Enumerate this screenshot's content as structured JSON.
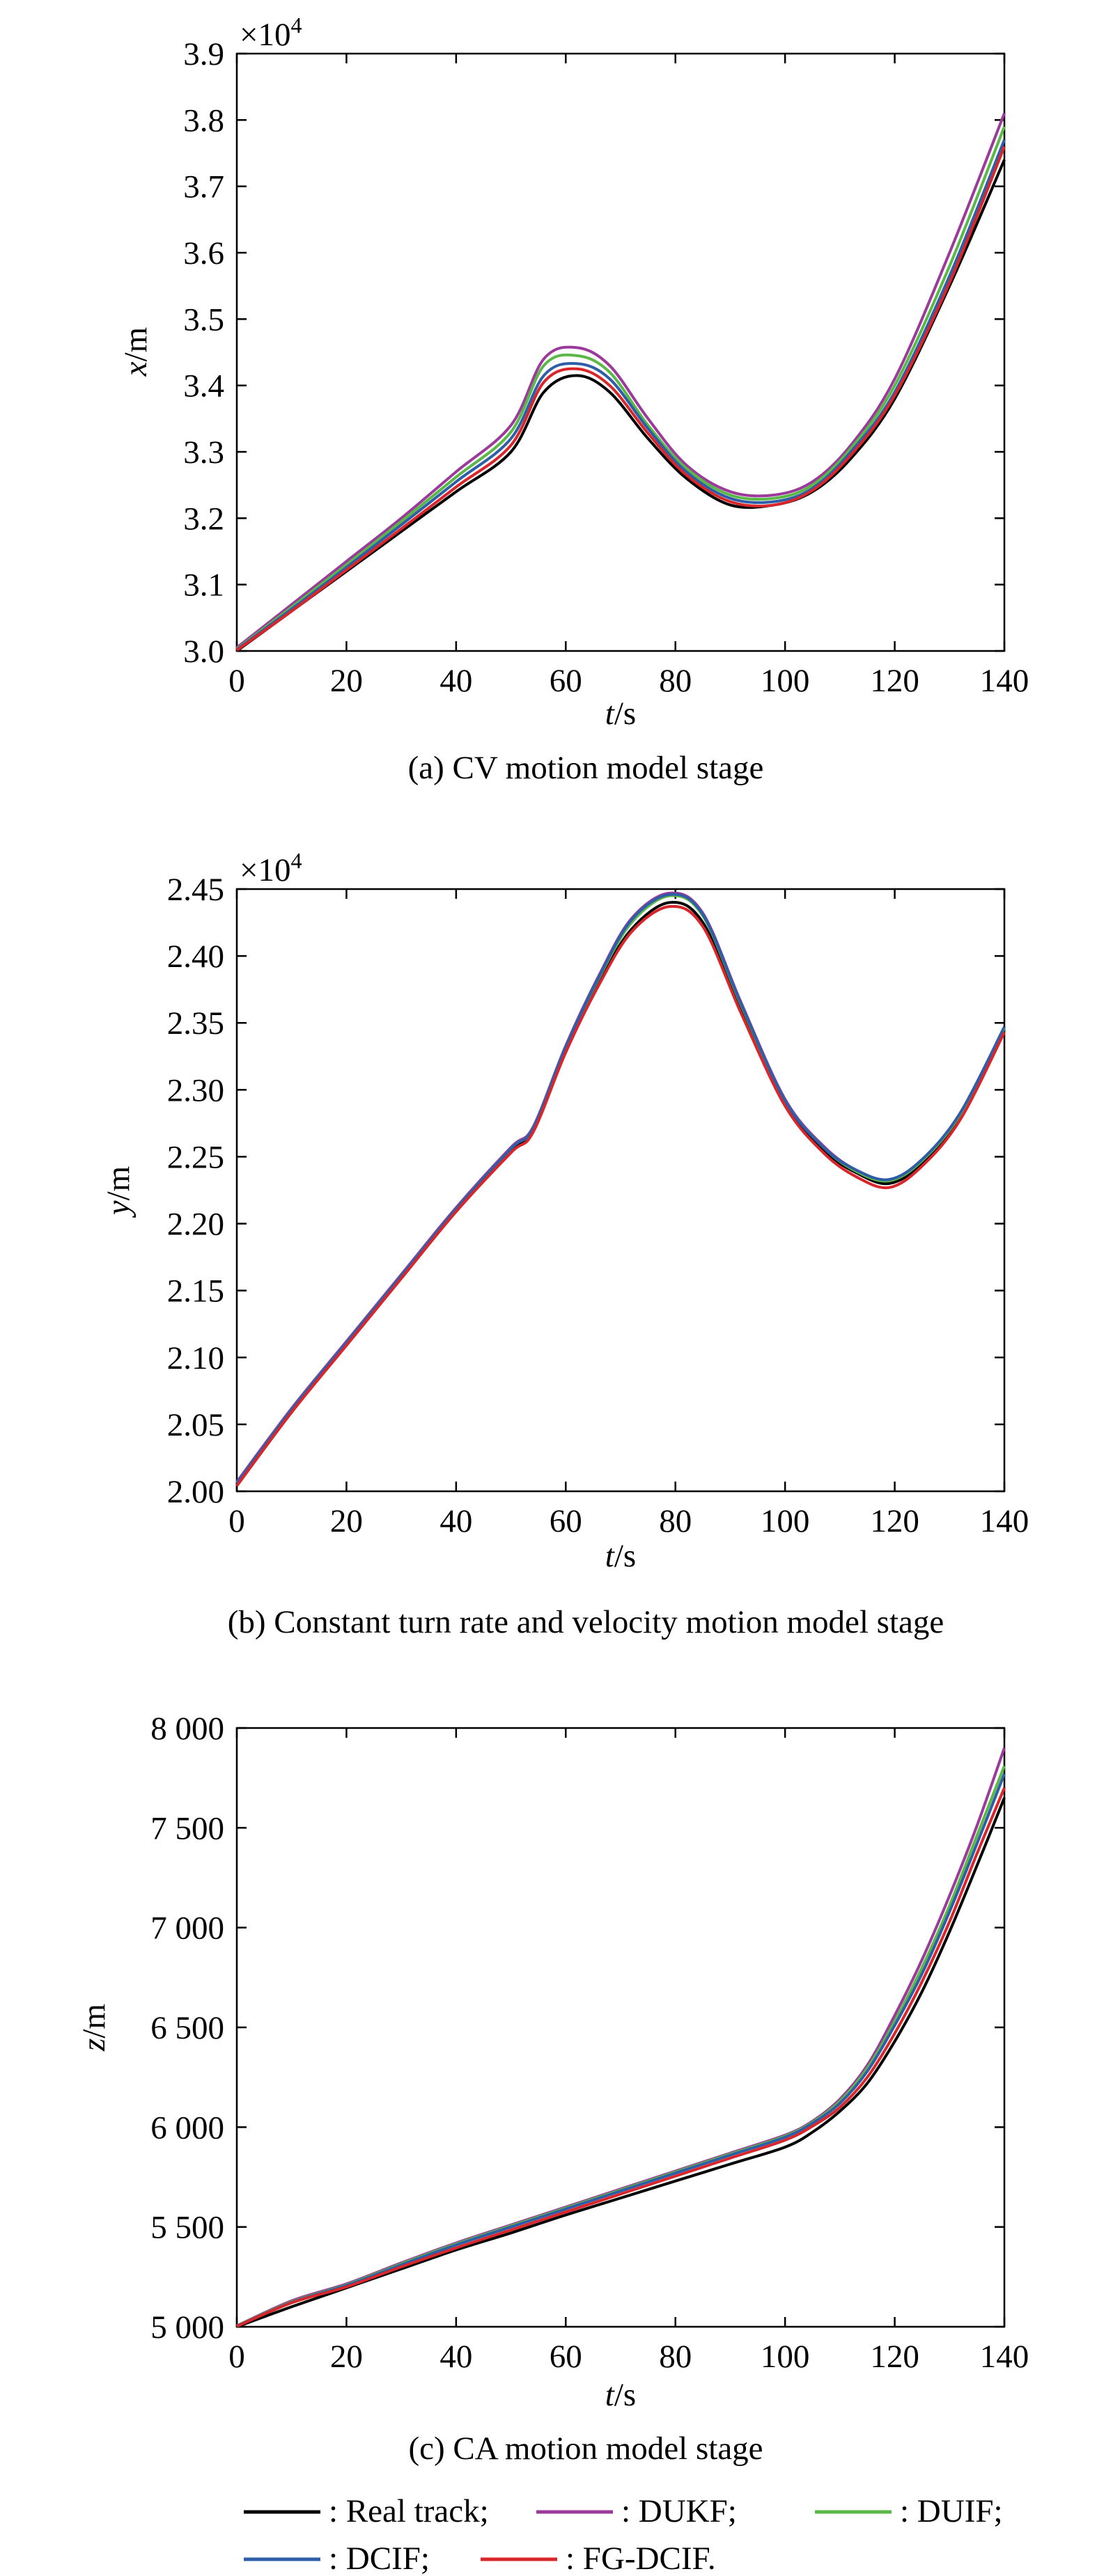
{
  "legend": {
    "entries": [
      {
        "label": ": Real track;",
        "color": "#000000"
      },
      {
        "label": ": DUKF;",
        "color": "#9b3a9b"
      },
      {
        "label": ": DUIF;",
        "color": "#5ab946"
      },
      {
        "label": ": DCIF;",
        "color": "#2f5ea8"
      },
      {
        "label": ": FG-DCIF.",
        "color": "#d9262a"
      }
    ]
  },
  "chart_data": [
    {
      "type": "line",
      "caption": "(a) CV motion model stage",
      "xlabel": "t/s",
      "ylabel": "x/m",
      "exponent": "×10",
      "exponent_power": "4",
      "xlim": [
        0,
        140
      ],
      "ylim": [
        3.0,
        3.9
      ],
      "xticks": [
        0,
        20,
        40,
        60,
        80,
        100,
        120,
        140
      ],
      "xtick_labels": [
        "0",
        "20",
        "40",
        "60",
        "80",
        "100",
        "120",
        "140"
      ],
      "yticks": [
        3.0,
        3.1,
        3.2,
        3.3,
        3.4,
        3.5,
        3.6,
        3.7,
        3.8,
        3.9
      ],
      "ytick_labels": [
        "3.0",
        "3.1",
        "3.2",
        "3.3",
        "3.4",
        "3.5",
        "3.6",
        "3.7",
        "3.8",
        "3.9"
      ],
      "series": [
        {
          "name": "Real track",
          "color": "#000000",
          "x": [
            0,
            10,
            20,
            30,
            40,
            50,
            56,
            62,
            68,
            75,
            82,
            90,
            98,
            105,
            112,
            120,
            130,
            140
          ],
          "y": [
            3.0,
            3.06,
            3.12,
            3.18,
            3.24,
            3.3,
            3.39,
            3.415,
            3.39,
            3.32,
            3.26,
            3.22,
            3.22,
            3.24,
            3.29,
            3.38,
            3.55,
            3.74
          ]
        },
        {
          "name": "DUKF",
          "color": "#9b3a9b",
          "x": [
            0,
            10,
            20,
            30,
            40,
            50,
            56,
            62,
            68,
            75,
            82,
            90,
            98,
            105,
            112,
            120,
            130,
            140
          ],
          "y": [
            3.005,
            3.07,
            3.135,
            3.2,
            3.27,
            3.34,
            3.44,
            3.457,
            3.43,
            3.35,
            3.28,
            3.24,
            3.235,
            3.255,
            3.31,
            3.41,
            3.6,
            3.81
          ]
        },
        {
          "name": "DUIF",
          "color": "#5ab946",
          "x": [
            0,
            10,
            20,
            30,
            40,
            50,
            56,
            62,
            68,
            75,
            82,
            90,
            98,
            105,
            112,
            120,
            130,
            140
          ],
          "y": [
            3.003,
            3.066,
            3.13,
            3.195,
            3.262,
            3.33,
            3.43,
            3.445,
            3.42,
            3.34,
            3.275,
            3.235,
            3.23,
            3.25,
            3.305,
            3.4,
            3.58,
            3.79
          ]
        },
        {
          "name": "DCIF",
          "color": "#2f5ea8",
          "x": [
            0,
            10,
            20,
            30,
            40,
            50,
            56,
            62,
            68,
            75,
            82,
            90,
            98,
            105,
            112,
            120,
            130,
            140
          ],
          "y": [
            3.002,
            3.063,
            3.126,
            3.19,
            3.255,
            3.32,
            3.415,
            3.433,
            3.41,
            3.335,
            3.27,
            3.23,
            3.225,
            3.245,
            3.3,
            3.39,
            3.565,
            3.77
          ]
        },
        {
          "name": "FG-DCIF",
          "color": "#d9262a",
          "x": [
            0,
            10,
            20,
            30,
            40,
            50,
            56,
            62,
            68,
            75,
            82,
            90,
            98,
            105,
            112,
            120,
            130,
            140
          ],
          "y": [
            3.001,
            3.06,
            3.122,
            3.184,
            3.247,
            3.31,
            3.405,
            3.425,
            3.4,
            3.328,
            3.265,
            3.225,
            3.22,
            3.242,
            3.295,
            3.385,
            3.555,
            3.76
          ]
        }
      ]
    },
    {
      "type": "line",
      "caption": "(b) Constant turn rate and velocity motion model stage",
      "xlabel": "t/s",
      "ylabel": "y/m",
      "exponent": "×10",
      "exponent_power": "4",
      "xlim": [
        0,
        140
      ],
      "ylim": [
        2.0,
        2.45
      ],
      "xticks": [
        0,
        20,
        40,
        60,
        80,
        100,
        120,
        140
      ],
      "xtick_labels": [
        "0",
        "20",
        "40",
        "60",
        "80",
        "100",
        "120",
        "140"
      ],
      "yticks": [
        2.0,
        2.05,
        2.1,
        2.15,
        2.2,
        2.25,
        2.3,
        2.35,
        2.4,
        2.45
      ],
      "ytick_labels": [
        "2.00",
        "2.05",
        "2.10",
        "2.15",
        "2.20",
        "2.25",
        "2.30",
        "2.35",
        "2.40",
        "2.45"
      ],
      "series": [
        {
          "name": "Real track",
          "color": "#000000",
          "x": [
            0,
            10,
            20,
            30,
            40,
            50,
            54,
            60,
            66,
            72,
            79,
            85,
            92,
            100,
            107,
            113,
            119,
            125,
            132,
            140
          ],
          "y": [
            2.005,
            2.06,
            2.11,
            2.16,
            2.21,
            2.255,
            2.27,
            2.33,
            2.38,
            2.42,
            2.44,
            2.425,
            2.36,
            2.29,
            2.255,
            2.238,
            2.23,
            2.245,
            2.28,
            2.345
          ]
        },
        {
          "name": "DUKF",
          "color": "#9b3a9b",
          "x": [
            0,
            10,
            20,
            30,
            40,
            50,
            54,
            60,
            66,
            72,
            79,
            85,
            92,
            100,
            107,
            113,
            119,
            125,
            132,
            140
          ],
          "y": [
            2.007,
            2.062,
            2.112,
            2.162,
            2.212,
            2.257,
            2.272,
            2.333,
            2.385,
            2.428,
            2.447,
            2.432,
            2.365,
            2.293,
            2.258,
            2.24,
            2.233,
            2.248,
            2.283,
            2.347
          ]
        },
        {
          "name": "DUIF",
          "color": "#5ab946",
          "x": [
            0,
            10,
            20,
            30,
            40,
            50,
            54,
            60,
            66,
            72,
            79,
            85,
            92,
            100,
            107,
            113,
            119,
            125,
            132,
            140
          ],
          "y": [
            2.006,
            2.061,
            2.111,
            2.161,
            2.211,
            2.256,
            2.271,
            2.332,
            2.383,
            2.425,
            2.445,
            2.43,
            2.363,
            2.292,
            2.257,
            2.239,
            2.232,
            2.247,
            2.282,
            2.346
          ]
        },
        {
          "name": "DCIF",
          "color": "#2f5ea8",
          "x": [
            0,
            10,
            20,
            30,
            40,
            50,
            54,
            60,
            66,
            72,
            79,
            85,
            92,
            100,
            107,
            113,
            119,
            125,
            132,
            140
          ],
          "y": [
            2.006,
            2.061,
            2.111,
            2.161,
            2.211,
            2.256,
            2.271,
            2.332,
            2.384,
            2.427,
            2.446,
            2.431,
            2.364,
            2.292,
            2.257,
            2.24,
            2.233,
            2.248,
            2.283,
            2.347
          ]
        },
        {
          "name": "FG-DCIF",
          "color": "#d9262a",
          "x": [
            0,
            10,
            20,
            30,
            40,
            50,
            54,
            60,
            66,
            72,
            79,
            85,
            92,
            100,
            107,
            113,
            119,
            125,
            132,
            140
          ],
          "y": [
            2.004,
            2.059,
            2.109,
            2.159,
            2.209,
            2.253,
            2.268,
            2.328,
            2.378,
            2.418,
            2.437,
            2.422,
            2.357,
            2.288,
            2.253,
            2.235,
            2.227,
            2.243,
            2.278,
            2.343
          ]
        }
      ]
    },
    {
      "type": "line",
      "caption": "(c) CA motion model stage",
      "xlabel": "t/s",
      "ylabel": "z/m",
      "xlim": [
        0,
        140
      ],
      "ylim": [
        5000,
        8000
      ],
      "xticks": [
        0,
        20,
        40,
        60,
        80,
        100,
        120,
        140
      ],
      "xtick_labels": [
        "0",
        "20",
        "40",
        "60",
        "80",
        "100",
        "120",
        "140"
      ],
      "yticks": [
        5000,
        5500,
        6000,
        6500,
        7000,
        7500,
        8000
      ],
      "ytick_labels": [
        "5 000",
        "5 500",
        "6 000",
        "6 500",
        "7 000",
        "7 500",
        "8 000"
      ],
      "series": [
        {
          "name": "Real track",
          "color": "#000000",
          "x": [
            0,
            10,
            20,
            30,
            40,
            50,
            60,
            70,
            80,
            90,
            100,
            105,
            110,
            115,
            120,
            125,
            130,
            135,
            140
          ],
          "y": [
            5000,
            5100,
            5195,
            5290,
            5385,
            5470,
            5560,
            5645,
            5730,
            5815,
            5900,
            5975,
            6080,
            6220,
            6430,
            6680,
            6980,
            7310,
            7650
          ]
        },
        {
          "name": "DUKF",
          "color": "#9b3a9b",
          "x": [
            0,
            10,
            20,
            30,
            40,
            50,
            60,
            70,
            80,
            90,
            100,
            105,
            110,
            115,
            120,
            125,
            130,
            135,
            140
          ],
          "y": [
            5005,
            5130,
            5215,
            5320,
            5420,
            5510,
            5600,
            5690,
            5780,
            5870,
            5960,
            6030,
            6140,
            6310,
            6560,
            6840,
            7160,
            7510,
            7900
          ]
        },
        {
          "name": "DUIF",
          "color": "#5ab946",
          "x": [
            0,
            10,
            20,
            30,
            40,
            50,
            60,
            70,
            80,
            90,
            100,
            105,
            110,
            115,
            120,
            125,
            130,
            135,
            140
          ],
          "y": [
            5004,
            5125,
            5210,
            5315,
            5415,
            5505,
            5595,
            5685,
            5775,
            5865,
            5955,
            6025,
            6130,
            6295,
            6530,
            6800,
            7110,
            7460,
            7810
          ]
        },
        {
          "name": "DCIF",
          "color": "#2f5ea8",
          "x": [
            0,
            10,
            20,
            30,
            40,
            50,
            60,
            70,
            80,
            90,
            100,
            105,
            110,
            115,
            120,
            125,
            130,
            135,
            140
          ],
          "y": [
            5003,
            5122,
            5207,
            5310,
            5410,
            5500,
            5590,
            5680,
            5770,
            5860,
            5950,
            6020,
            6120,
            6280,
            6510,
            6770,
            7080,
            7420,
            7770
          ]
        },
        {
          "name": "FG-DCIF",
          "color": "#d9262a",
          "x": [
            0,
            10,
            20,
            30,
            40,
            50,
            60,
            70,
            80,
            90,
            100,
            105,
            110,
            115,
            120,
            125,
            130,
            135,
            140
          ],
          "y": [
            5002,
            5120,
            5200,
            5300,
            5395,
            5485,
            5575,
            5665,
            5755,
            5845,
            5935,
            6005,
            6100,
            6250,
            6470,
            6730,
            7030,
            7370,
            7700
          ]
        }
      ]
    }
  ]
}
